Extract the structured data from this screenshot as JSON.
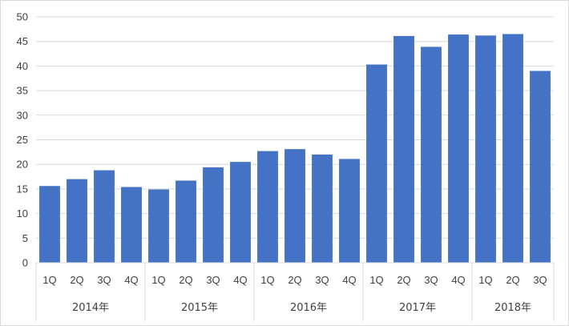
{
  "chart_data": {
    "type": "bar",
    "title": "",
    "xlabel": "",
    "ylabel": "",
    "ylim": [
      0,
      50
    ],
    "yticks": [
      0,
      5,
      10,
      15,
      20,
      25,
      30,
      35,
      40,
      45,
      50
    ],
    "grid": true,
    "bar_color": "#4472C4",
    "gridline_color": "#d9d9d9",
    "categories": [
      "1Q",
      "2Q",
      "3Q",
      "4Q",
      "1Q",
      "2Q",
      "3Q",
      "4Q",
      "1Q",
      "2Q",
      "3Q",
      "4Q",
      "1Q",
      "2Q",
      "3Q",
      "4Q",
      "1Q",
      "2Q",
      "3Q"
    ],
    "groups": [
      {
        "label": "2014年",
        "count": 4
      },
      {
        "label": "2015年",
        "count": 4
      },
      {
        "label": "2016年",
        "count": 4
      },
      {
        "label": "2017年",
        "count": 4
      },
      {
        "label": "2018年",
        "count": 3
      }
    ],
    "values": [
      15.6,
      17.0,
      18.8,
      15.4,
      14.9,
      16.7,
      19.4,
      20.5,
      22.7,
      23.1,
      22.0,
      21.1,
      40.3,
      46.1,
      43.9,
      46.4,
      46.2,
      46.5,
      39.0
    ]
  }
}
